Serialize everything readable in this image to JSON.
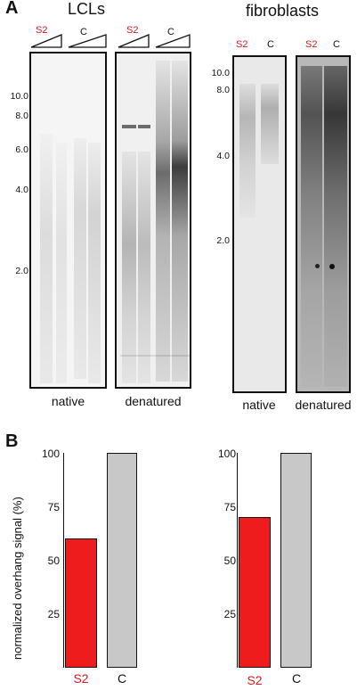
{
  "panel_a": {
    "letter": "A",
    "lcl_title": "LCLs",
    "fibro_title": "fibroblasts",
    "lane_s2": "S2",
    "lane_c": "C",
    "mw_markers_lcl": [
      "10.0",
      "8.0",
      "6.0",
      "4.0",
      "2.0"
    ],
    "mw_markers_fibro": [
      "10.0",
      "8.0",
      "4.0",
      "2.0"
    ],
    "native_caption": "native",
    "denatured_caption": "denatured"
  },
  "panel_b": {
    "letter": "B",
    "ylabel": "normalized overhang signal (%)",
    "ticks": [
      "100",
      "75",
      "50",
      "25"
    ],
    "s2_color": "#ee1c1c",
    "c_color": "#c8c8c8"
  },
  "chart_data": [
    {
      "type": "bar",
      "categories": [
        "S2",
        "C"
      ],
      "values": [
        60,
        100
      ],
      "ylabel": "normalized overhang signal (%)",
      "ylim": [
        0,
        100
      ],
      "yticks": [
        25,
        50,
        75,
        100
      ]
    },
    {
      "type": "bar",
      "categories": [
        "S2",
        "C"
      ],
      "values": [
        70,
        100
      ],
      "ylabel": "",
      "ylim": [
        0,
        100
      ],
      "yticks": [
        25,
        50,
        75,
        100
      ]
    }
  ]
}
